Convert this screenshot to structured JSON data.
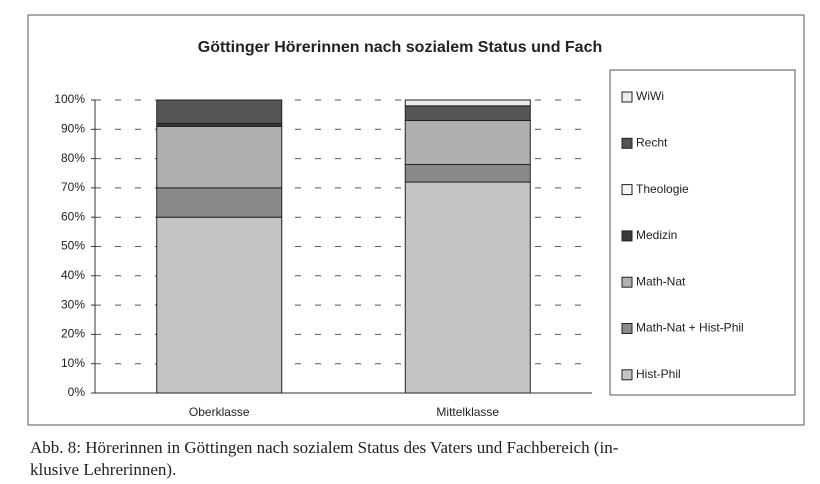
{
  "chart_data": {
    "type": "bar",
    "stacked": true,
    "title": "Göttinger Hörerinnen nach sozialem Status und Fach",
    "categories": [
      "Oberklasse",
      "Mittelklasse"
    ],
    "series": [
      {
        "name": "Hist-Phil",
        "color": "#c4c4c4",
        "values": [
          60,
          72
        ]
      },
      {
        "name": "Math-Nat + Hist-Phil",
        "color": "#8a8a8a",
        "values": [
          10,
          6
        ]
      },
      {
        "name": "Math-Nat",
        "color": "#b0b0b0",
        "values": [
          21,
          15
        ]
      },
      {
        "name": "Medizin",
        "color": "#3a3a3a",
        "values": [
          1,
          0
        ]
      },
      {
        "name": "Theologie",
        "color": "#f4f4f4",
        "values": [
          0,
          0
        ]
      },
      {
        "name": "Recht",
        "color": "#555555",
        "values": [
          8,
          5
        ]
      },
      {
        "name": "WiWi",
        "color": "#ececec",
        "values": [
          0,
          2
        ]
      }
    ],
    "ylim": [
      0,
      100
    ],
    "yticks": [
      {
        "value": 0,
        "label": "0%"
      },
      {
        "value": 10,
        "label": "10%"
      },
      {
        "value": 20,
        "label": "20%"
      },
      {
        "value": 30,
        "label": "30%"
      },
      {
        "value": 40,
        "label": "40%"
      },
      {
        "value": 50,
        "label": "50%"
      },
      {
        "value": 60,
        "label": "60%"
      },
      {
        "value": 70,
        "label": "70%"
      },
      {
        "value": 80,
        "label": "80%"
      },
      {
        "value": 90,
        "label": "90%"
      },
      {
        "value": 100,
        "label": "100%"
      }
    ],
    "grid": true,
    "legend": "right",
    "caption": [
      "Abb. 8: Hörerinnen in Göttingen nach sozialem Status des Vaters und Fachbereich (in-",
      "klusive Lehrerinnen)."
    ]
  }
}
